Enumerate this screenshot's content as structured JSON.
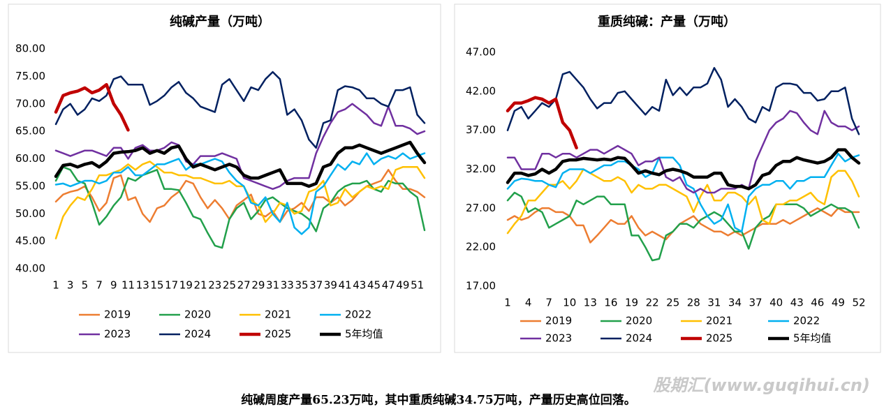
{
  "chart_data": [
    {
      "type": "line",
      "title": "纯碱产量（万吨）",
      "categories": [
        1,
        null,
        3,
        null,
        5,
        null,
        7,
        null,
        9,
        null,
        11,
        null,
        13,
        null,
        15,
        null,
        17,
        null,
        19,
        null,
        21,
        null,
        23,
        null,
        25,
        null,
        27,
        null,
        29,
        null,
        31,
        null,
        33,
        null,
        35,
        null,
        37,
        null,
        39,
        null,
        41,
        null,
        43,
        null,
        45,
        null,
        47,
        null,
        49,
        null,
        51,
        null
      ],
      "ylim": [
        40,
        80
      ],
      "yticks": [
        {
          "value": 40,
          "label": "40.00"
        },
        {
          "value": 45,
          "label": "45.00"
        },
        {
          "value": 50,
          "label": "50.00"
        },
        {
          "value": 55,
          "label": "55.00"
        },
        {
          "value": 60,
          "label": "60.00"
        },
        {
          "value": 65,
          "label": "65.00"
        },
        {
          "value": 70,
          "label": "70.00"
        },
        {
          "value": 75,
          "label": "75.00"
        },
        {
          "value": 80,
          "label": "80.00"
        }
      ],
      "grid": false,
      "series": [
        {
          "name": "2019",
          "color": "#ED7D31",
          "values": [
            52.2,
            53.5,
            54,
            54.3,
            55,
            53,
            50.5,
            52,
            56.5,
            57,
            52.5,
            53,
            50,
            48.5,
            51,
            51.5,
            53,
            54,
            56,
            55.5,
            53,
            51,
            52.5,
            51,
            49,
            51.5,
            52.5,
            53.5,
            50,
            49.5,
            50.5,
            48.5,
            50.5,
            51,
            52,
            50.5,
            53,
            53,
            52,
            53,
            51.5,
            52.5,
            54,
            55,
            55.5,
            56,
            58,
            56,
            54.5,
            54.5,
            54,
            53
          ]
        },
        {
          "name": "2020",
          "color": "#22A04B",
          "values": [
            56,
            58.5,
            58,
            56,
            55.5,
            52,
            48,
            49.5,
            51.5,
            53,
            56.5,
            56,
            57,
            57.5,
            58,
            54.5,
            54.5,
            54.3,
            52,
            49.5,
            49,
            46.5,
            44.2,
            43.8,
            49,
            51,
            52,
            49,
            50.5,
            52.5,
            53,
            52,
            51,
            50.5,
            50,
            49,
            46.8,
            51,
            52,
            54,
            55,
            55.5,
            55.5,
            56,
            54.5,
            54,
            56,
            55.5,
            55.5,
            54,
            53,
            47
          ]
        },
        {
          "name": "2021",
          "color": "#FFC000",
          "values": [
            45.5,
            49.5,
            51.5,
            53,
            52.5,
            54.5,
            57,
            57,
            57.5,
            58,
            59,
            58,
            59,
            59.5,
            58.5,
            57.5,
            57.5,
            57,
            57,
            56.5,
            56.5,
            56,
            55.5,
            55.5,
            56,
            55,
            55,
            52.5,
            51.5,
            48.5,
            50,
            52,
            51.5,
            50,
            50.5,
            54,
            54.5,
            56,
            51.5,
            52,
            54.5,
            53,
            54,
            55,
            54.5,
            55,
            54.5,
            58,
            58.5,
            58.5,
            58.5,
            56.5
          ]
        },
        {
          "name": "2022",
          "color": "#00B0F0",
          "values": [
            55.3,
            55.5,
            55,
            55.5,
            56,
            56,
            55.5,
            56,
            57.5,
            57.5,
            58.5,
            57,
            57,
            58,
            59,
            59,
            59.5,
            60,
            58,
            59,
            59,
            59.5,
            60,
            59.5,
            57.5,
            56,
            55,
            52,
            51.5,
            53,
            50,
            48.5,
            52,
            47.5,
            46.3,
            47.5,
            54,
            55,
            57,
            59,
            58,
            59.5,
            59,
            61,
            59,
            60,
            60.5,
            60,
            61,
            60,
            60.5,
            61
          ]
        },
        {
          "name": "2023",
          "color": "#7030A0",
          "values": [
            61.5,
            61,
            60.5,
            61,
            61.5,
            61.5,
            61,
            60.5,
            62,
            62,
            60,
            62,
            62.5,
            61.5,
            61.5,
            62,
            63,
            62.5,
            59.5,
            59,
            60.5,
            60.5,
            60.5,
            61,
            60.5,
            60,
            56.5,
            56,
            55.5,
            55,
            54.5,
            55,
            56,
            56.5,
            56.5,
            56.5,
            61,
            64,
            66.5,
            68.5,
            69,
            70,
            69,
            68,
            66.5,
            66,
            69.5,
            66,
            66,
            65.5,
            64.5,
            65
          ]
        },
        {
          "name": "2024",
          "color": "#002060",
          "values": [
            66.3,
            69,
            70,
            68,
            69,
            71,
            70.5,
            71.5,
            74.5,
            75,
            73.5,
            73.5,
            73.5,
            69.8,
            70.5,
            71.5,
            73,
            74,
            72,
            71,
            69.5,
            69,
            68.5,
            73.5,
            74.5,
            72.5,
            70.5,
            73,
            72.5,
            74.5,
            75.8,
            74.5,
            68,
            69,
            67,
            63.5,
            62,
            66.5,
            67,
            72.5,
            73.2,
            73,
            72.5,
            71,
            71,
            70,
            69.5,
            72.5,
            72.5,
            73,
            68,
            66.5
          ]
        },
        {
          "name": "2025",
          "color": "#C00000",
          "values": [
            68.5,
            71.5,
            72,
            72.3,
            72.9,
            72,
            72.5,
            73.5,
            70,
            68,
            65.23,
            null,
            null,
            null,
            null,
            null,
            null,
            null,
            null,
            null,
            null,
            null,
            null,
            null,
            null,
            null,
            null,
            null,
            null,
            null,
            null,
            null,
            null,
            null,
            null,
            null,
            null,
            null,
            null,
            null,
            null,
            null,
            null,
            null,
            null,
            null,
            null,
            null,
            null,
            null,
            null,
            null
          ]
        },
        {
          "name": "5年均值",
          "color": "#000000",
          "values": [
            56.8,
            58.8,
            59,
            58.5,
            59,
            59.3,
            58.5,
            59.5,
            61,
            61.2,
            61.3,
            61.5,
            62,
            61,
            61.5,
            61,
            62,
            62.3,
            60,
            58.5,
            59,
            58.5,
            58,
            58.5,
            59,
            58.5,
            57,
            56.5,
            56.5,
            57,
            57.5,
            58,
            55.5,
            55.5,
            55.5,
            55,
            55.5,
            58.5,
            59,
            61,
            62,
            62,
            62.5,
            62,
            61.5,
            61,
            61.5,
            62,
            62.5,
            63,
            61,
            59.3
          ]
        }
      ]
    },
    {
      "type": "line",
      "title": "重质纯碱：产量（万吨）",
      "categories": [
        1,
        null,
        null,
        4,
        null,
        null,
        7,
        null,
        null,
        10,
        null,
        null,
        13,
        null,
        null,
        16,
        null,
        null,
        19,
        null,
        null,
        22,
        null,
        null,
        25,
        null,
        null,
        28,
        null,
        null,
        31,
        null,
        null,
        34,
        null,
        null,
        37,
        null,
        null,
        40,
        null,
        null,
        43,
        null,
        null,
        46,
        null,
        null,
        49,
        null,
        null,
        52
      ],
      "ylim": [
        17,
        47
      ],
      "yticks": [
        {
          "value": 17,
          "label": "17.00"
        },
        {
          "value": 22,
          "label": "22.00"
        },
        {
          "value": 27,
          "label": "27.00"
        },
        {
          "value": 32,
          "label": "32.00"
        },
        {
          "value": 37,
          "label": "37.00"
        },
        {
          "value": 42,
          "label": "42.00"
        },
        {
          "value": 47,
          "label": "47.00"
        }
      ],
      "grid": false,
      "series": [
        {
          "name": "2019",
          "color": "#ED7D31",
          "values": [
            25.5,
            26,
            25.5,
            25.8,
            26.5,
            27,
            27,
            26.5,
            26.5,
            26,
            24.8,
            24.8,
            22.6,
            23.5,
            24.5,
            25.5,
            25,
            25,
            26,
            24.5,
            23.5,
            24,
            23.5,
            23,
            24,
            25,
            25.5,
            26,
            25,
            24.5,
            24,
            24,
            23.5,
            24,
            23.5,
            24,
            24.5,
            25,
            25,
            25,
            25.5,
            25,
            25.5,
            26,
            26.5,
            27,
            26.5,
            26,
            27,
            26.5,
            26.5,
            26.5
          ]
        },
        {
          "name": "2020",
          "color": "#22A04B",
          "values": [
            28,
            29,
            28.5,
            26.5,
            27,
            26.5,
            24.5,
            25,
            25.5,
            26,
            28,
            27.5,
            28,
            28.5,
            28.5,
            27.5,
            27.5,
            27.5,
            23.5,
            23.5,
            22,
            20.3,
            20.5,
            23.5,
            24,
            25,
            25,
            24.5,
            25.5,
            26,
            26.5,
            26,
            25,
            24,
            24,
            21.8,
            24.5,
            25.5,
            26,
            27.5,
            27.5,
            27.5,
            27.5,
            27,
            26,
            26.5,
            27,
            27.5,
            27,
            27,
            26.5,
            24.5
          ]
        },
        {
          "name": "2021",
          "color": "#FFC000",
          "values": [
            23.8,
            25,
            26,
            28,
            28,
            29,
            30,
            30,
            30.5,
            29.5,
            30.5,
            32,
            31.5,
            31,
            30.5,
            30.5,
            31,
            30.5,
            29,
            30,
            29.5,
            29.5,
            30,
            30,
            29.5,
            29,
            28.5,
            26.5,
            28.5,
            30,
            28,
            28,
            29,
            29,
            28.5,
            27.5,
            28.5,
            25.5,
            25,
            27.5,
            27.5,
            28,
            28,
            28.5,
            29,
            28,
            27.5,
            31,
            31.8,
            31.8,
            30.5,
            28.5
          ]
        },
        {
          "name": "2022",
          "color": "#00B0F0",
          "values": [
            29.5,
            30.5,
            30.8,
            30.7,
            30.5,
            30.5,
            30,
            29.7,
            31.5,
            32,
            32,
            32,
            31.5,
            32,
            32.5,
            32.5,
            33,
            33,
            32.5,
            32,
            31,
            31.5,
            33.5,
            33.5,
            33.5,
            32.5,
            30,
            29.5,
            27.5,
            26,
            25,
            25.5,
            27.5,
            24.5,
            24,
            28.5,
            29.5,
            30,
            30,
            30.5,
            30.5,
            29.5,
            30.5,
            30.5,
            31,
            31,
            31,
            32.5,
            34,
            33,
            33.5,
            33.8
          ]
        },
        {
          "name": "2023",
          "color": "#7030A0",
          "values": [
            33.5,
            33.5,
            32,
            32,
            32,
            34,
            34,
            33.5,
            34,
            34,
            33.5,
            34,
            34.5,
            34.5,
            34,
            34.5,
            35,
            34.5,
            34,
            32.5,
            33,
            33,
            33.5,
            31,
            30.5,
            31,
            29.5,
            29,
            29.5,
            29,
            29,
            29.5,
            29.5,
            29.5,
            30,
            29.5,
            33,
            35,
            37,
            38,
            38.5,
            39.5,
            39.2,
            38,
            37,
            36.5,
            39.5,
            38,
            37.5,
            37.5,
            37,
            37.5
          ]
        },
        {
          "name": "2024",
          "color": "#002060",
          "values": [
            37,
            39.5,
            40,
            38.5,
            39.5,
            40.5,
            40,
            41,
            44.2,
            44.5,
            43.5,
            42.5,
            41,
            39.8,
            40.5,
            40.5,
            41.8,
            42,
            41,
            40,
            39,
            40,
            39.5,
            43.5,
            41.5,
            42.5,
            41.5,
            42.5,
            42.5,
            43,
            45,
            43.5,
            40,
            41,
            40,
            38.5,
            38,
            40,
            39.5,
            42.5,
            43,
            43,
            42.8,
            41.8,
            41.8,
            40.8,
            41,
            42,
            42,
            42.5,
            38.5,
            36.5
          ]
        },
        {
          "name": "2025",
          "color": "#C00000",
          "values": [
            39.5,
            40.5,
            40.5,
            40.8,
            41.2,
            41,
            40.5,
            41,
            38,
            37,
            34.75,
            null,
            null,
            null,
            null,
            null,
            null,
            null,
            null,
            null,
            null,
            null,
            null,
            null,
            null,
            null,
            null,
            null,
            null,
            null,
            null,
            null,
            null,
            null,
            null,
            null,
            null,
            null,
            null,
            null,
            null,
            null,
            null,
            null,
            null,
            null,
            null,
            null,
            null,
            null,
            null,
            null
          ]
        },
        {
          "name": "5年均值",
          "color": "#000000",
          "values": [
            30.3,
            31.5,
            31.5,
            31.2,
            31.4,
            32,
            31.5,
            32,
            33,
            33.2,
            33.2,
            33.4,
            33.3,
            33.2,
            33.3,
            33.2,
            33.5,
            33.4,
            32.5,
            31.5,
            31.8,
            31.5,
            31.3,
            31.8,
            32,
            31.8,
            31.5,
            31,
            31,
            31,
            31.5,
            31.5,
            30,
            29.8,
            29.8,
            29.5,
            30,
            31.2,
            31.5,
            32.5,
            33,
            33,
            33.5,
            33.2,
            33,
            32.8,
            33,
            33.5,
            34.5,
            34.5,
            33.5,
            32.8
          ]
        }
      ]
    }
  ],
  "caption": "纯碱周度产量65.23万吨，其中重质纯碱34.75万吨，产量历史高位回落。",
  "watermark": "股期汇(www.guqihui.cn)"
}
